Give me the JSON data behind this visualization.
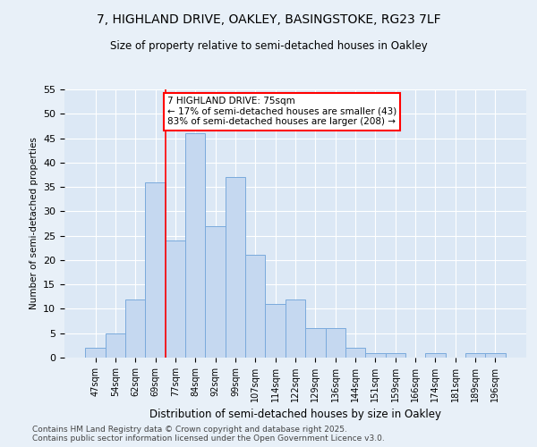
{
  "title1": "7, HIGHLAND DRIVE, OAKLEY, BASINGSTOKE, RG23 7LF",
  "title2": "Size of property relative to semi-detached houses in Oakley",
  "xlabel": "Distribution of semi-detached houses by size in Oakley",
  "ylabel": "Number of semi-detached properties",
  "categories": [
    "47sqm",
    "54sqm",
    "62sqm",
    "69sqm",
    "77sqm",
    "84sqm",
    "92sqm",
    "99sqm",
    "107sqm",
    "114sqm",
    "122sqm",
    "129sqm",
    "136sqm",
    "144sqm",
    "151sqm",
    "159sqm",
    "166sqm",
    "174sqm",
    "181sqm",
    "189sqm",
    "196sqm"
  ],
  "values": [
    2,
    5,
    12,
    36,
    24,
    46,
    27,
    37,
    21,
    11,
    12,
    6,
    6,
    2,
    1,
    1,
    0,
    1,
    0,
    1,
    1
  ],
  "bar_color": "#c5d8f0",
  "bar_edge_color": "#7aaadc",
  "annotation_title": "7 HIGHLAND DRIVE: 75sqm",
  "annotation_line1": "← 17% of semi-detached houses are smaller (43)",
  "annotation_line2": "83% of semi-detached houses are larger (208) →",
  "ylim": [
    0,
    55
  ],
  "yticks": [
    0,
    5,
    10,
    15,
    20,
    25,
    30,
    35,
    40,
    45,
    50,
    55
  ],
  "footnote1": "Contains HM Land Registry data © Crown copyright and database right 2025.",
  "footnote2": "Contains public sector information licensed under the Open Government Licence v3.0.",
  "background_color": "#e8f0f8",
  "plot_bg_color": "#dce8f5",
  "red_line_x": 3.5
}
